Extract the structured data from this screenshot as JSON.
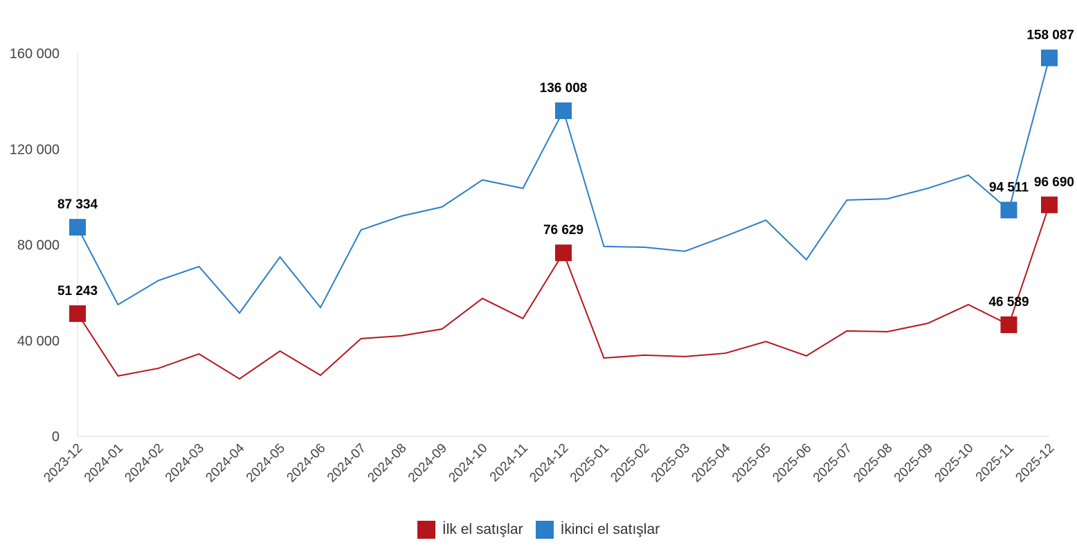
{
  "chart_data": {
    "type": "line",
    "title": "",
    "xlabel": "",
    "ylabel": "",
    "ylim": [
      0,
      160000
    ],
    "yticks": [
      0,
      40000,
      80000,
      120000,
      160000
    ],
    "ytick_labels": [
      "0",
      "40 000",
      "80 000",
      "120 000",
      "160 000"
    ],
    "grid": false,
    "legend_position": "bottom",
    "categories": [
      "2023-12",
      "2024-01",
      "2024-02",
      "2024-03",
      "2024-04",
      "2024-05",
      "2024-06",
      "2024-07",
      "2024-08",
      "2024-09",
      "2024-10",
      "2024-11",
      "2024-12",
      "2025-01",
      "2025-02",
      "2025-03",
      "2025-04",
      "2025-05",
      "2025-06",
      "2025-07",
      "2025-08",
      "2025-09",
      "2025-10",
      "2025-11",
      "2025-12"
    ],
    "series": [
      {
        "name": "İlk el satışlar",
        "color": "#b5161b",
        "values": [
          51243,
          25200,
          28400,
          34400,
          24000,
          35600,
          25500,
          40800,
          42000,
          44800,
          57600,
          49200,
          76629,
          32700,
          33900,
          33300,
          34700,
          39600,
          33600,
          44000,
          43700,
          47200,
          55000,
          46589,
          96690
        ],
        "labeled_points": [
          {
            "index": 0,
            "label": "51 243"
          },
          {
            "index": 12,
            "label": "76 629"
          },
          {
            "index": 23,
            "label": "46 589"
          },
          {
            "index": 24,
            "label": "96 690"
          }
        ]
      },
      {
        "name": "İkinci el satışlar",
        "color": "#2b7ec7",
        "values": [
          87334,
          55000,
          65100,
          70900,
          51500,
          74900,
          53800,
          86200,
          92000,
          95800,
          107100,
          103600,
          136008,
          79300,
          79000,
          77300,
          83600,
          90300,
          73800,
          98700,
          99200,
          103600,
          109100,
          94511,
          158087
        ],
        "labeled_points": [
          {
            "index": 0,
            "label": "87 334"
          },
          {
            "index": 12,
            "label": "136 008"
          },
          {
            "index": 23,
            "label": "94 511"
          },
          {
            "index": 24,
            "label": "158 087"
          }
        ]
      }
    ]
  }
}
